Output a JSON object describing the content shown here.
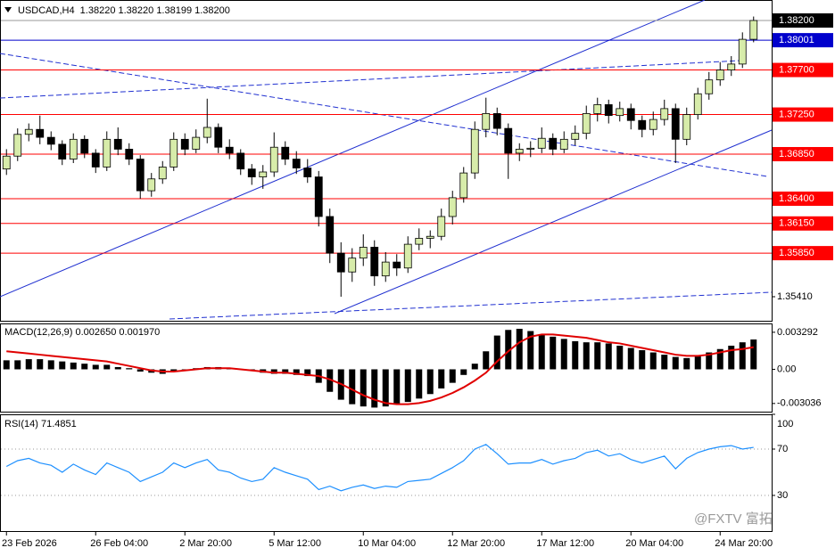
{
  "chart_data": [
    {
      "type": "candlestick",
      "title": "USDCAD,H4  1.38220 1.38220 1.38199 1.38200",
      "categories": [
        "23 Feb 2026",
        null,
        null,
        null,
        null,
        null,
        null,
        null,
        "26 Feb 04:00",
        null,
        null,
        null,
        null,
        null,
        null,
        null,
        "2 Mar 20:00",
        null,
        null,
        null,
        null,
        null,
        null,
        null,
        "5 Mar 12:00",
        null,
        null,
        null,
        null,
        null,
        null,
        null,
        "10 Mar 04:00",
        null,
        null,
        null,
        null,
        null,
        null,
        null,
        "12 Mar 20:00",
        null,
        null,
        null,
        null,
        null,
        null,
        null,
        "17 Mar 12:00",
        null,
        null,
        null,
        null,
        null,
        null,
        null,
        "20 Mar 04:00",
        null,
        null,
        null,
        null,
        null,
        null,
        null,
        "24 Mar 20:00",
        null,
        null,
        null
      ],
      "candles": [
        [
          1.367,
          1.369,
          1.3664,
          1.3683
        ],
        [
          1.3683,
          1.3711,
          1.3678,
          1.3705
        ],
        [
          1.3705,
          1.3716,
          1.3698,
          1.371
        ],
        [
          1.371,
          1.3724,
          1.3695,
          1.3702
        ],
        [
          1.3702,
          1.3708,
          1.3689,
          1.3695
        ],
        [
          1.3695,
          1.3699,
          1.3674,
          1.368
        ],
        [
          1.368,
          1.3706,
          1.3676,
          1.37
        ],
        [
          1.37,
          1.3704,
          1.3681,
          1.3686
        ],
        [
          1.3686,
          1.369,
          1.3666,
          1.3672
        ],
        [
          1.3672,
          1.3708,
          1.3668,
          1.37
        ],
        [
          1.37,
          1.3712,
          1.3684,
          1.369
        ],
        [
          1.369,
          1.3696,
          1.3674,
          1.368
        ],
        [
          1.368,
          1.3684,
          1.364,
          1.3648
        ],
        [
          1.3648,
          1.3666,
          1.3642,
          1.366
        ],
        [
          1.366,
          1.3678,
          1.3655,
          1.3672
        ],
        [
          1.3672,
          1.3707,
          1.3668,
          1.37
        ],
        [
          1.37,
          1.3706,
          1.3684,
          1.369
        ],
        [
          1.369,
          1.371,
          1.3686,
          1.3702
        ],
        [
          1.3702,
          1.3741,
          1.3696,
          1.3712
        ],
        [
          1.3712,
          1.3716,
          1.3686,
          1.3692
        ],
        [
          1.3692,
          1.37,
          1.368,
          1.3686
        ],
        [
          1.3686,
          1.369,
          1.3664,
          1.367
        ],
        [
          1.367,
          1.3675,
          1.3654,
          1.3662
        ],
        [
          1.3662,
          1.3674,
          1.365,
          1.3667
        ],
        [
          1.3667,
          1.3707,
          1.3662,
          1.3692
        ],
        [
          1.3692,
          1.3698,
          1.3674,
          1.368
        ],
        [
          1.368,
          1.3688,
          1.3665,
          1.3671
        ],
        [
          1.3671,
          1.368,
          1.3656,
          1.3662
        ],
        [
          1.3662,
          1.3668,
          1.3612,
          1.3622
        ],
        [
          1.3622,
          1.363,
          1.3575,
          1.3585
        ],
        [
          1.3585,
          1.3596,
          1.3541,
          1.3566
        ],
        [
          1.3566,
          1.359,
          1.3556,
          1.358
        ],
        [
          1.358,
          1.3604,
          1.3572,
          1.3591
        ],
        [
          1.3591,
          1.3598,
          1.3552,
          1.3562
        ],
        [
          1.3562,
          1.3586,
          1.3556,
          1.3576
        ],
        [
          1.3576,
          1.3584,
          1.3562,
          1.357
        ],
        [
          1.357,
          1.3602,
          1.3565,
          1.3594
        ],
        [
          1.3594,
          1.361,
          1.3588,
          1.36
        ],
        [
          1.36,
          1.3608,
          1.359,
          1.3602
        ],
        [
          1.3602,
          1.363,
          1.3598,
          1.3622
        ],
        [
          1.3622,
          1.3648,
          1.3614,
          1.3641
        ],
        [
          1.3641,
          1.3672,
          1.3636,
          1.3666
        ],
        [
          1.3666,
          1.3718,
          1.366,
          1.371
        ],
        [
          1.371,
          1.3742,
          1.3702,
          1.3726
        ],
        [
          1.3726,
          1.3732,
          1.3704,
          1.3711
        ],
        [
          1.3711,
          1.3716,
          1.366,
          1.3686
        ],
        [
          1.3686,
          1.3696,
          1.3678,
          1.369
        ],
        [
          1.369,
          1.3698,
          1.3682,
          1.3691
        ],
        [
          1.3691,
          1.3712,
          1.3686,
          1.3701
        ],
        [
          1.3701,
          1.3706,
          1.3684,
          1.369
        ],
        [
          1.369,
          1.3708,
          1.3686,
          1.37
        ],
        [
          1.37,
          1.3714,
          1.3694,
          1.3706
        ],
        [
          1.3706,
          1.3734,
          1.37,
          1.3726
        ],
        [
          1.3726,
          1.3742,
          1.3718,
          1.3735
        ],
        [
          1.3735,
          1.374,
          1.3716,
          1.3724
        ],
        [
          1.3724,
          1.3738,
          1.3718,
          1.3731
        ],
        [
          1.3731,
          1.3736,
          1.371,
          1.3719
        ],
        [
          1.3719,
          1.3724,
          1.3702,
          1.371
        ],
        [
          1.371,
          1.3728,
          1.3704,
          1.372
        ],
        [
          1.372,
          1.374,
          1.3714,
          1.3731
        ],
        [
          1.3731,
          1.3736,
          1.3676,
          1.37
        ],
        [
          1.37,
          1.3732,
          1.3694,
          1.3725
        ],
        [
          1.3725,
          1.3752,
          1.372,
          1.3746
        ],
        [
          1.3746,
          1.3768,
          1.374,
          1.376
        ],
        [
          1.376,
          1.3778,
          1.3754,
          1.377
        ],
        [
          1.377,
          1.3784,
          1.3764,
          1.3776
        ],
        [
          1.3776,
          1.3808,
          1.3772,
          1.3801
        ],
        [
          1.3801,
          1.3824,
          1.3798,
          1.382
        ]
      ],
      "up_color": "#d7ecaa",
      "down_color": "#000000",
      "ylim": [
        1.35167,
        1.38407
      ],
      "yticks": [
        {
          "value": 1.3541,
          "label": "1.35410"
        }
      ],
      "levels": [
        {
          "value": 1.382,
          "label": "1.38200",
          "color": "#000000",
          "line_color": "#9a9a9a"
        },
        {
          "value": 1.38001,
          "label": "1.38001",
          "color": "#0000cc",
          "line_color": "#0000cc"
        },
        {
          "value": 1.377,
          "label": "1.37700",
          "color": "#ff0000",
          "line_color": "#ff0000"
        },
        {
          "value": 1.3725,
          "label": "1.37250",
          "color": "#ff0000",
          "line_color": "#ff0000"
        },
        {
          "value": 1.3685,
          "label": "1.36850",
          "color": "#ff0000",
          "line_color": "#ff0000"
        },
        {
          "value": 1.364,
          "label": "1.36400",
          "color": "#ff0000",
          "line_color": "#ff0000"
        },
        {
          "value": 1.3615,
          "label": "1.36150",
          "color": "#ff0000",
          "line_color": "#ff0000"
        },
        {
          "value": 1.3585,
          "label": "1.35850",
          "color": "#ff0000",
          "line_color": "#ff0000"
        }
      ]
    },
    {
      "type": "macd",
      "title": "MACD(12,26,9) 0.002650 0.001970",
      "series": [
        {
          "name": "MACD",
          "color": "#000000",
          "values": [
            0.0008,
            0.0008,
            0.0009,
            0.0009,
            0.0008,
            0.0007,
            0.0006,
            0.0005,
            0.0004,
            0.0004,
            0.0002,
            0.0001,
            -0.0002,
            -0.0003,
            -0.0004,
            -0.0002,
            0,
            0.0001,
            0.0002,
            0.0002,
            0.0001,
            0,
            -0.0001,
            -0.0003,
            -0.0004,
            -0.0004,
            -0.0005,
            -0.0006,
            -0.0012,
            -0.002,
            -0.0027,
            -0.0031,
            -0.0033,
            -0.0034,
            -0.0033,
            -0.0031,
            -0.0029,
            -0.0026,
            -0.0022,
            -0.0017,
            -0.0012,
            -0.0005,
            0.0005,
            0.0016,
            0.003,
            0.0035,
            0.0036,
            0.0034,
            0.0031,
            0.0029,
            0.0027,
            0.0025,
            0.0024,
            0.0024,
            0.0023,
            0.0021,
            0.0019,
            0.0017,
            0.0015,
            0.0013,
            0.0011,
            0.001,
            0.0012,
            0.0015,
            0.0018,
            0.0021,
            0.0024,
            0.00265
          ]
        },
        {
          "name": "Signal",
          "color": "#e00000",
          "values": [
            0.0016,
            0.0015,
            0.0014,
            0.0013,
            0.0012,
            0.0011,
            0.001,
            0.0009,
            0.0008,
            0.0007,
            0.0005,
            0.0003,
            0.0001,
            -0.0001,
            -0.0002,
            -0.0002,
            -0.0001,
            0,
            0.0001,
            0.0001,
            0.0001,
            0,
            -0.0001,
            -0.0002,
            -0.0003,
            -0.0003,
            -0.0004,
            -0.0005,
            -0.0006,
            -0.0009,
            -0.0013,
            -0.0018,
            -0.0023,
            -0.0027,
            -0.003,
            -0.0031,
            -0.0031,
            -0.003,
            -0.0028,
            -0.0025,
            -0.0021,
            -0.0016,
            -0.001,
            -0.0003,
            0.0007,
            0.0016,
            0.0024,
            0.0029,
            0.0031,
            0.0031,
            0.003,
            0.0029,
            0.0028,
            0.0026,
            0.0024,
            0.0023,
            0.0021,
            0.0019,
            0.0017,
            0.0015,
            0.0013,
            0.0012,
            0.0012,
            0.0013,
            0.0015,
            0.0017,
            0.0018,
            0.00197
          ]
        }
      ],
      "ylim": [
        -0.003762,
        0.003997
      ],
      "yticks": [
        0.003292,
        {
          "value": 0,
          "label": "0.00"
        },
        -0.003036
      ]
    },
    {
      "type": "rsi",
      "title": "RSI(14) 71.4851",
      "series": [
        {
          "name": "RSI(14)",
          "color": "#1e90ff",
          "values": [
            55,
            60,
            62,
            58,
            56,
            50,
            57,
            52,
            48,
            58,
            54,
            50,
            42,
            46,
            50,
            58,
            54,
            58,
            61,
            52,
            50,
            45,
            42,
            44,
            54,
            50,
            47,
            44,
            35,
            38,
            34,
            37,
            39,
            36,
            38,
            37,
            42,
            43,
            44,
            49,
            54,
            60,
            70,
            74,
            66,
            57,
            58,
            58,
            61,
            57,
            60,
            62,
            67,
            69,
            64,
            66,
            61,
            58,
            61,
            64,
            53,
            62,
            67,
            70,
            72,
            73,
            70,
            71.4851
          ]
        }
      ],
      "ylim": [
        0,
        100
      ],
      "yticks": [
        100,
        70,
        30
      ],
      "levels": [
        70,
        30
      ]
    }
  ],
  "watermark": "@FXTV 富拓"
}
